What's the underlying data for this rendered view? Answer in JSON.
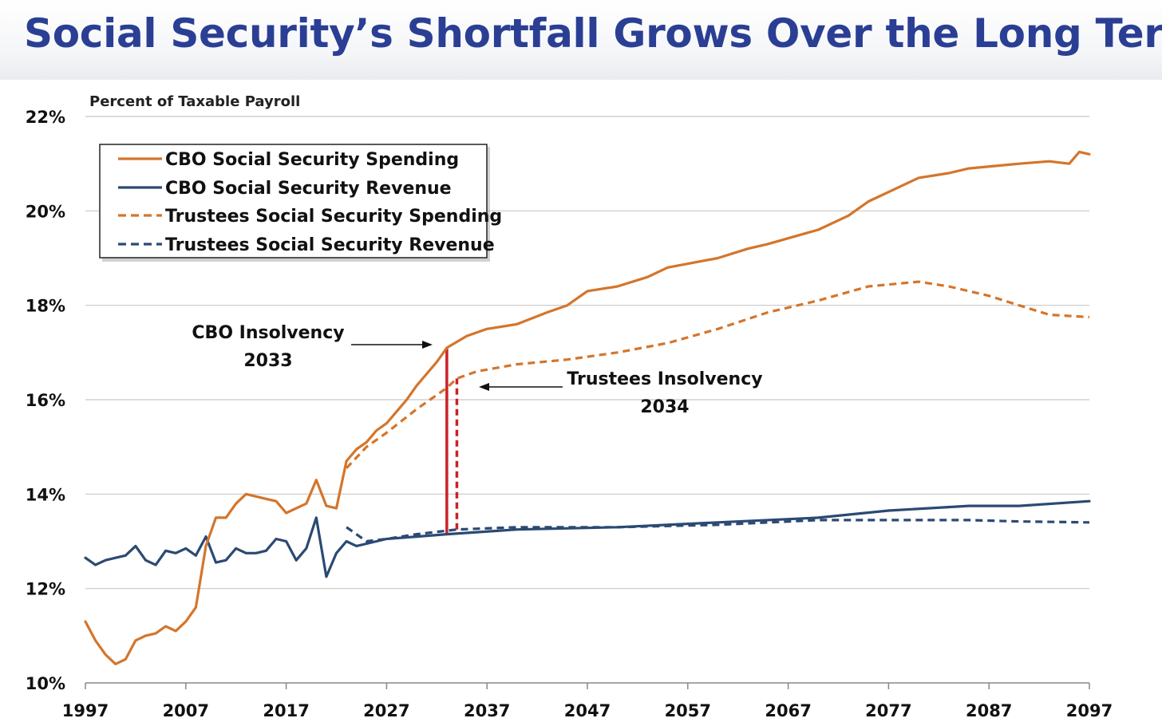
{
  "title": "Social Security’s Shortfall Grows Over the Long Term",
  "chart_data": {
    "type": "line",
    "title": "Social Security’s Shortfall Grows Over the Long Term",
    "ylabel": "Percent of Taxable Payroll",
    "xlabel": "",
    "xlim": [
      1997,
      2097
    ],
    "ylim": [
      10,
      22
    ],
    "x_ticks": [
      "1997",
      "2007",
      "2017",
      "2027",
      "2037",
      "2047",
      "2057",
      "2067",
      "2077",
      "2087",
      "2097"
    ],
    "y_ticks": [
      "10%",
      "12%",
      "14%",
      "16%",
      "18%",
      "20%",
      "22%"
    ],
    "grid": true,
    "legend_position": "top-left",
    "series": [
      {
        "name": "CBO Social Security Spending",
        "color": "#d4752b",
        "dash": "solid",
        "points": [
          [
            1997,
            11.3
          ],
          [
            1998,
            10.9
          ],
          [
            1999,
            10.6
          ],
          [
            2000,
            10.4
          ],
          [
            2001,
            10.5
          ],
          [
            2002,
            10.9
          ],
          [
            2003,
            11.0
          ],
          [
            2004,
            11.05
          ],
          [
            2005,
            11.2
          ],
          [
            2006,
            11.1
          ],
          [
            2007,
            11.3
          ],
          [
            2008,
            11.6
          ],
          [
            2009,
            12.9
          ],
          [
            2010,
            13.5
          ],
          [
            2011,
            13.5
          ],
          [
            2012,
            13.8
          ],
          [
            2013,
            14.0
          ],
          [
            2014,
            13.95
          ],
          [
            2015,
            13.9
          ],
          [
            2016,
            13.85
          ],
          [
            2017,
            13.6
          ],
          [
            2018,
            13.7
          ],
          [
            2019,
            13.8
          ],
          [
            2020,
            14.3
          ],
          [
            2021,
            13.75
          ],
          [
            2022,
            13.7
          ],
          [
            2023,
            14.7
          ],
          [
            2024,
            14.95
          ],
          [
            2025,
            15.1
          ],
          [
            2026,
            15.35
          ],
          [
            2027,
            15.5
          ],
          [
            2028,
            15.75
          ],
          [
            2029,
            16.0
          ],
          [
            2030,
            16.3
          ],
          [
            2031,
            16.55
          ],
          [
            2032,
            16.8
          ],
          [
            2033,
            17.1
          ],
          [
            2035,
            17.35
          ],
          [
            2037,
            17.5
          ],
          [
            2040,
            17.6
          ],
          [
            2043,
            17.85
          ],
          [
            2045,
            18.0
          ],
          [
            2047,
            18.3
          ],
          [
            2050,
            18.4
          ],
          [
            2053,
            18.6
          ],
          [
            2055,
            18.8
          ],
          [
            2060,
            19.0
          ],
          [
            2063,
            19.2
          ],
          [
            2065,
            19.3
          ],
          [
            2070,
            19.6
          ],
          [
            2073,
            19.9
          ],
          [
            2075,
            20.2
          ],
          [
            2077,
            20.4
          ],
          [
            2080,
            20.7
          ],
          [
            2083,
            20.8
          ],
          [
            2085,
            20.9
          ],
          [
            2090,
            21.0
          ],
          [
            2093,
            21.05
          ],
          [
            2095,
            21.0
          ],
          [
            2096,
            21.25
          ],
          [
            2097,
            21.2
          ]
        ]
      },
      {
        "name": "CBO Social Security Revenue",
        "color": "#2b4a73",
        "dash": "solid",
        "points": [
          [
            1997,
            12.65
          ],
          [
            1998,
            12.5
          ],
          [
            1999,
            12.6
          ],
          [
            2000,
            12.65
          ],
          [
            2001,
            12.7
          ],
          [
            2002,
            12.9
          ],
          [
            2003,
            12.6
          ],
          [
            2004,
            12.5
          ],
          [
            2005,
            12.8
          ],
          [
            2006,
            12.75
          ],
          [
            2007,
            12.85
          ],
          [
            2008,
            12.7
          ],
          [
            2009,
            13.1
          ],
          [
            2010,
            12.55
          ],
          [
            2011,
            12.6
          ],
          [
            2012,
            12.85
          ],
          [
            2013,
            12.75
          ],
          [
            2014,
            12.75
          ],
          [
            2015,
            12.8
          ],
          [
            2016,
            13.05
          ],
          [
            2017,
            13.0
          ],
          [
            2018,
            12.6
          ],
          [
            2019,
            12.85
          ],
          [
            2020,
            13.5
          ],
          [
            2021,
            12.25
          ],
          [
            2022,
            12.75
          ],
          [
            2023,
            13.0
          ],
          [
            2024,
            12.9
          ],
          [
            2025,
            12.95
          ],
          [
            2027,
            13.05
          ],
          [
            2030,
            13.1
          ],
          [
            2033,
            13.15
          ],
          [
            2040,
            13.25
          ],
          [
            2050,
            13.3
          ],
          [
            2060,
            13.4
          ],
          [
            2070,
            13.5
          ],
          [
            2077,
            13.65
          ],
          [
            2085,
            13.75
          ],
          [
            2090,
            13.75
          ],
          [
            2097,
            13.85
          ]
        ]
      },
      {
        "name": "Trustees Social Security Spending",
        "color": "#d4752b",
        "dash": "dashed",
        "points": [
          [
            2023,
            14.55
          ],
          [
            2025,
            15.0
          ],
          [
            2027,
            15.3
          ],
          [
            2030,
            15.8
          ],
          [
            2033,
            16.25
          ],
          [
            2034,
            16.45
          ],
          [
            2036,
            16.6
          ],
          [
            2040,
            16.75
          ],
          [
            2045,
            16.85
          ],
          [
            2050,
            17.0
          ],
          [
            2055,
            17.2
          ],
          [
            2060,
            17.5
          ],
          [
            2065,
            17.85
          ],
          [
            2070,
            18.1
          ],
          [
            2075,
            18.4
          ],
          [
            2080,
            18.5
          ],
          [
            2083,
            18.4
          ],
          [
            2087,
            18.2
          ],
          [
            2090,
            18.0
          ],
          [
            2093,
            17.8
          ],
          [
            2097,
            17.75
          ]
        ]
      },
      {
        "name": "Trustees Social Security Revenue",
        "color": "#2b4a73",
        "dash": "dashed",
        "points": [
          [
            2023,
            13.3
          ],
          [
            2025,
            13.0
          ],
          [
            2027,
            13.05
          ],
          [
            2030,
            13.15
          ],
          [
            2034,
            13.25
          ],
          [
            2040,
            13.3
          ],
          [
            2050,
            13.3
          ],
          [
            2060,
            13.35
          ],
          [
            2070,
            13.45
          ],
          [
            2077,
            13.45
          ],
          [
            2085,
            13.45
          ],
          [
            2090,
            13.42
          ],
          [
            2097,
            13.4
          ]
        ]
      }
    ],
    "annotations": [
      {
        "name": "cbo-insolvency",
        "lines": [
          "CBO Insolvency",
          "2033"
        ],
        "year": 2033,
        "from": 13.15,
        "to": 17.1,
        "color": "#cc2028",
        "dash": "solid"
      },
      {
        "name": "trustees-insolvency",
        "lines": [
          "Trustees Insolvency",
          "2034"
        ],
        "year": 2034,
        "from": 13.25,
        "to": 16.45,
        "color": "#cc2028",
        "dash": "dashed"
      }
    ]
  }
}
